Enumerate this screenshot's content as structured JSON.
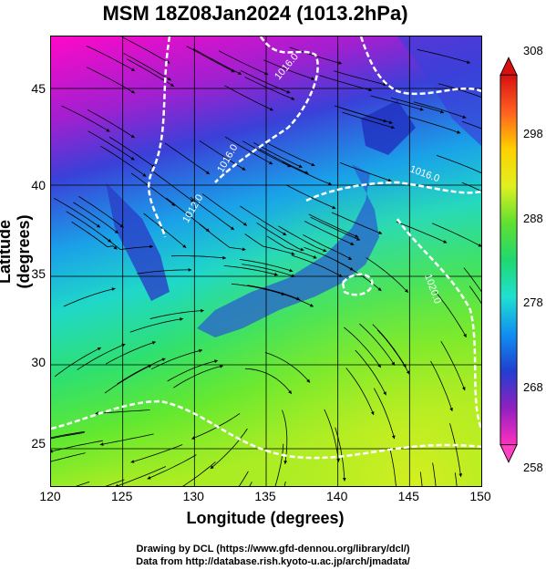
{
  "title": "MSM 18Z08Jan2024 (1013.2hPa)",
  "xlabel": "Longitude (degrees)",
  "ylabel": "Latitude  (degrees)",
  "xticks": [
    "120",
    "125",
    "130",
    "135",
    "140",
    "145",
    "150"
  ],
  "yticks": [
    "45",
    "40",
    "35",
    "30",
    "25"
  ],
  "colorbar_ticks": [
    "308",
    "298",
    "288",
    "278",
    "268",
    "258"
  ],
  "contour_labels": [
    "1016.0",
    "1016.0",
    "1016.0",
    "1012.0",
    "1020.0"
  ],
  "credit_line1": "Drawing by DCL (https://www.gfd-dennou.org/library/dcl/)",
  "credit_line2": "Data from http://database.rish.kyoto-u.ac.jp/arch/jmadata/",
  "colors": {
    "cold": "#ff00cc",
    "cool": "#3a4fd8",
    "mid": "#22d7d0",
    "warm": "#3ee04a",
    "hot": "#ffcc00"
  }
}
